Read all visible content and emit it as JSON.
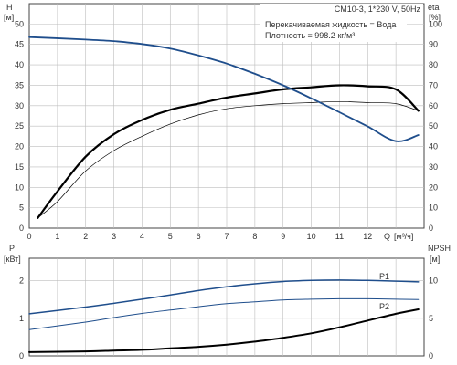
{
  "chart_data": [
    {
      "type": "line",
      "title": "CM10-3, 1*230 V, 50Hz",
      "annotations": [
        "Перекачиваемая жидкость = Вода",
        "Плотность = 998.2 кг/м³"
      ],
      "xlabel": "Q",
      "xunit": "[м³/ч]",
      "xlim": [
        0,
        14
      ],
      "xticks": [
        "0",
        "1",
        "2",
        "3",
        "4",
        "5",
        "6",
        "7",
        "8",
        "9",
        "10",
        "11",
        "12",
        "13"
      ],
      "ylabel_left": "H",
      "yunit_left": "[м]",
      "ylim_left": [
        0,
        55
      ],
      "yticks_left": [
        "0",
        "5",
        "10",
        "15",
        "20",
        "25",
        "30",
        "35",
        "40",
        "45",
        "50"
      ],
      "ylabel_right": "eta",
      "yunit_right": "[%]",
      "ylim_right": [
        0,
        110
      ],
      "yticks_right": [
        "0",
        "10",
        "20",
        "30",
        "40",
        "50",
        "60",
        "70",
        "80",
        "90",
        "100"
      ],
      "grid": true,
      "series": [
        {
          "key": "H",
          "axis": "left",
          "color": "#1f4e8c",
          "x": [
            0,
            2,
            3,
            4,
            5,
            6,
            7,
            8,
            9,
            10,
            11,
            12,
            13,
            13.8
          ],
          "y": [
            46.8,
            46.2,
            45.8,
            45.1,
            44.0,
            42.3,
            40.3,
            37.8,
            35.0,
            31.8,
            28.4,
            24.9,
            21.3,
            22.8
          ]
        },
        {
          "key": "eta",
          "axis": "right",
          "color": "#000000",
          "x": [
            0.3,
            1,
            2,
            3,
            4,
            5,
            6,
            7,
            8,
            9,
            10,
            11,
            12,
            13,
            13.8
          ],
          "y": [
            5,
            18,
            35,
            46,
            53,
            58,
            61,
            64,
            66,
            68,
            69,
            70,
            69.5,
            68,
            57.5
          ]
        },
        {
          "key": "eta_thin",
          "axis": "right",
          "color": "#000000",
          "x": [
            0.3,
            1,
            2,
            3,
            4,
            5,
            6,
            7,
            8,
            9,
            10,
            11,
            12,
            13,
            13.8
          ],
          "y": [
            5,
            13,
            28,
            38,
            45,
            51,
            55.5,
            58.5,
            60,
            61,
            61.5,
            62,
            61.5,
            61,
            57.5
          ]
        }
      ]
    },
    {
      "type": "line",
      "xlim": [
        0,
        14
      ],
      "ylabel_left": "P",
      "yunit_left": "[кВт]",
      "ylim_left": [
        0,
        2.6
      ],
      "yticks_left": [
        "0",
        "1",
        "2"
      ],
      "ylabel_right": "NPSH",
      "yunit_right": "[м]",
      "ylim_right": [
        0,
        13
      ],
      "yticks_right": [
        "0",
        "5",
        "10"
      ],
      "grid": true,
      "series": [
        {
          "key": "P1",
          "name": "P1",
          "axis": "left",
          "color": "#1f4e8c",
          "x": [
            0,
            2,
            3,
            4,
            5,
            6,
            7,
            8,
            9,
            10,
            11,
            12,
            13,
            13.8
          ],
          "y": [
            1.12,
            1.3,
            1.4,
            1.51,
            1.62,
            1.74,
            1.84,
            1.92,
            1.98,
            2.01,
            2.02,
            2.01,
            1.99,
            1.97
          ]
        },
        {
          "key": "P2",
          "name": "P2",
          "axis": "left",
          "color": "#1f4e8c",
          "x": [
            0,
            2,
            3,
            4,
            5,
            6,
            7,
            8,
            9,
            10,
            11,
            12,
            13,
            13.8
          ],
          "y": [
            0.7,
            0.9,
            1.02,
            1.13,
            1.22,
            1.31,
            1.39,
            1.44,
            1.49,
            1.51,
            1.52,
            1.52,
            1.51,
            1.5
          ]
        },
        {
          "key": "NPSH",
          "axis": "right",
          "color": "#000000",
          "x": [
            0,
            2,
            3,
            4,
            5,
            6,
            7,
            8,
            9,
            10,
            11,
            12,
            13,
            13.8
          ],
          "y": [
            0.5,
            0.6,
            0.7,
            0.8,
            1.0,
            1.2,
            1.5,
            1.9,
            2.4,
            3.0,
            3.8,
            4.7,
            5.6,
            6.2
          ]
        }
      ]
    }
  ]
}
